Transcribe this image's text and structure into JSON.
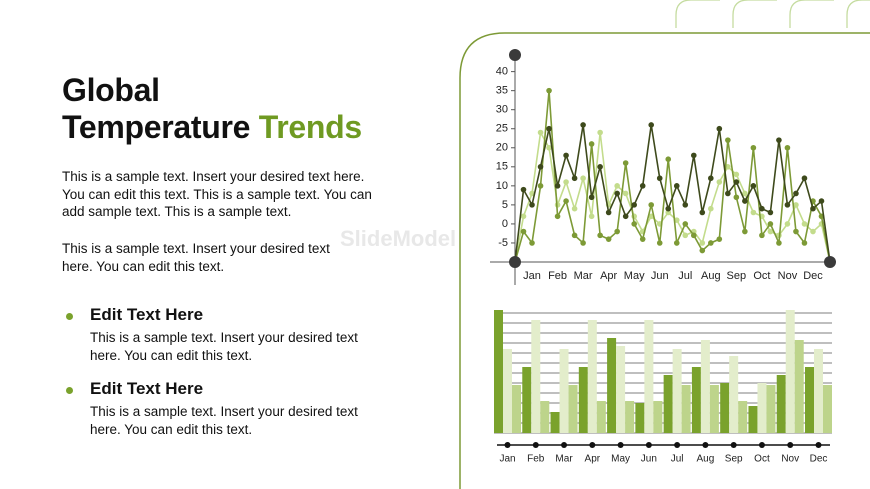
{
  "title_line1": "Global",
  "title_line2": "Temperature",
  "title_highlight": "Trends",
  "paragraphs": [
    "This is a sample text. Insert your desired text here. You can edit this text. This is a sample text. You can add sample text. This is a sample text.",
    "This is a sample text. Insert your desired text here. You can edit this text."
  ],
  "bullets": [
    {
      "heading": "Edit Text Here",
      "text": "This is a sample text. Insert your desired text here. You can edit this text."
    },
    {
      "heading": "Edit Text Here",
      "text": "This is a sample text. Insert your desired text here. You can edit this text."
    }
  ],
  "watermark": "SlideModel",
  "chart_data": [
    {
      "type": "line",
      "categories": [
        null,
        null,
        "Jan",
        null,
        null,
        "Feb",
        null,
        null,
        "Mar",
        null,
        null,
        "Apr",
        null,
        null,
        "May",
        null,
        null,
        "Jun",
        null,
        null,
        "Jul",
        null,
        null,
        "Aug",
        null,
        null,
        "Sep",
        null,
        null,
        "Oct",
        null,
        null,
        "Nov",
        null,
        null,
        "Dec",
        null,
        null
      ],
      "ylim": [
        -10,
        42
      ],
      "yticks": [
        -5,
        0,
        5,
        10,
        15,
        20,
        25,
        30,
        35,
        40
      ],
      "series": [
        {
          "color": "#3e4a1c",
          "values": [
            -10,
            9,
            5,
            15,
            25,
            10,
            18,
            12,
            26,
            7,
            15,
            3,
            8,
            2,
            5,
            10,
            26,
            12,
            4,
            10,
            5,
            18,
            3,
            12,
            25,
            8,
            11,
            6,
            10,
            4,
            3,
            22,
            5,
            8,
            12,
            4,
            6,
            -10
          ]
        },
        {
          "color": "#7d9a36",
          "values": [
            -10,
            -2,
            -5,
            10,
            35,
            2,
            6,
            -3,
            -5,
            21,
            -3,
            -4,
            -2,
            16,
            0,
            -4,
            5,
            -5,
            17,
            -5,
            0,
            -3,
            -7,
            -5,
            -4,
            22,
            7,
            -2,
            20,
            -3,
            0,
            -5,
            20,
            -2,
            -5,
            6,
            2,
            -10
          ]
        },
        {
          "color": "#c3dc8c",
          "values": [
            -10,
            2,
            8,
            24,
            20,
            5,
            11,
            4,
            12,
            2,
            24,
            5,
            10,
            8,
            2,
            -2,
            2,
            0,
            3,
            1,
            -3,
            -2,
            -5,
            4,
            11,
            15,
            13,
            8,
            3,
            2,
            -2,
            -3,
            0,
            5,
            0,
            -2,
            0,
            -10
          ]
        }
      ]
    },
    {
      "type": "bar",
      "categories": [
        "Jan",
        "Feb",
        "Mar",
        "Apr",
        "May",
        "Jun",
        "Jul",
        "Aug",
        "Sep",
        "Oct",
        "Nov",
        "Dec"
      ],
      "ylim": [
        0,
        12
      ],
      "yticks": [
        0,
        1,
        2,
        3,
        4,
        5,
        6,
        7,
        8,
        9,
        10,
        11,
        12
      ],
      "grid": true,
      "series": [
        {
          "color": "#7aa22c",
          "values": [
            12.3,
            6.6,
            2.1,
            6.6,
            9.5,
            3,
            5.8,
            6.6,
            5,
            2.7,
            5.8,
            6.6
          ]
        },
        {
          "color": "#e3edcb",
          "values": [
            8.4,
            11.3,
            8.4,
            11.3,
            8.7,
            11.3,
            8.4,
            9.3,
            7.7,
            5,
            12.3,
            8.4
          ]
        },
        {
          "color": "#bdd48b",
          "values": [
            4.8,
            3.2,
            4.8,
            3.2,
            3.2,
            3.2,
            4.8,
            4.8,
            3.2,
            4.8,
            9.3,
            4.8
          ]
        }
      ]
    }
  ]
}
